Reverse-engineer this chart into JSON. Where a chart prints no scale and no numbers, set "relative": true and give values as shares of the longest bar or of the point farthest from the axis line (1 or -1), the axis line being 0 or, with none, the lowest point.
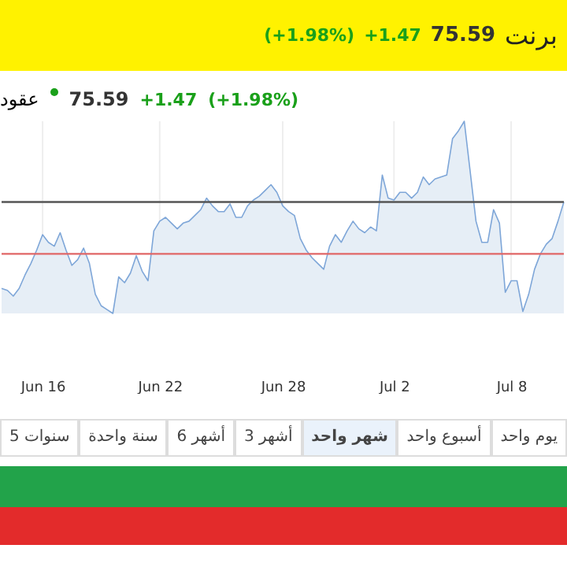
{
  "chart_data": {
    "type": "area",
    "title": "برنت",
    "subtitle": "عقود",
    "annotations": [
      "75.59",
      "+1.47",
      "(+1.98%)",
      "يوم واحد",
      "أسبوع واحد",
      "شهر واحد",
      "3 أشهر",
      "6 أشهر",
      "سنة واحدة",
      "5 سنوات"
    ],
    "relative": true,
    "grid": "x",
    "categories": [
      null,
      null,
      null,
      null,
      null,
      null,
      null,
      "Jun 16",
      null,
      null,
      null,
      null,
      null,
      null,
      null,
      null,
      null,
      null,
      null,
      null,
      null,
      null,
      null,
      null,
      null,
      null,
      null,
      "Jun 22",
      null,
      null,
      null,
      null,
      null,
      null,
      null,
      null,
      null,
      null,
      null,
      null,
      null,
      null,
      null,
      null,
      null,
      null,
      null,
      null,
      "Jun 28",
      null,
      null,
      null,
      null,
      null,
      null,
      null,
      null,
      null,
      null,
      null,
      null,
      null,
      null,
      null,
      null,
      null,
      null,
      "Jul 2",
      null,
      null,
      null,
      null,
      null,
      null,
      null,
      null,
      null,
      null,
      null,
      null,
      null,
      null,
      null,
      null,
      null,
      null,
      null,
      "Jul 8",
      null,
      null,
      null,
      null,
      null,
      null,
      null,
      null,
      null
    ],
    "series": [
      {
        "color": "#7ea6d8",
        "values": [
          0.13,
          0.12,
          0.09,
          0.13,
          0.2,
          0.26,
          0.33,
          0.41,
          0.37,
          0.35,
          0.42,
          0.33,
          0.25,
          0.28,
          0.34,
          0.26,
          0.1,
          0.04,
          0.02,
          0.0,
          0.19,
          0.16,
          0.21,
          0.3,
          0.22,
          0.17,
          0.43,
          0.48,
          0.5,
          0.47,
          0.44,
          0.47,
          0.48,
          0.51,
          0.54,
          0.6,
          0.56,
          0.53,
          0.53,
          0.57,
          0.5,
          0.5,
          0.56,
          0.59,
          0.61,
          0.64,
          0.67,
          0.63,
          0.56,
          0.53,
          0.51,
          0.39,
          0.33,
          0.29,
          0.26,
          0.23,
          0.35,
          0.41,
          0.37,
          0.43,
          0.48,
          0.44,
          0.42,
          0.45,
          0.43,
          0.72,
          0.6,
          0.59,
          0.63,
          0.63,
          0.6,
          0.63,
          0.71,
          0.67,
          0.7,
          0.71,
          0.72,
          0.91,
          0.95,
          1.0,
          0.74,
          0.48,
          0.37,
          0.37,
          0.54,
          0.47,
          0.11,
          0.17,
          0.17,
          0.01,
          0.1,
          0.23,
          0.31,
          0.36,
          0.39,
          0.48,
          0.58
        ]
      }
    ],
    "ref_lines": [
      {
        "axis": "y",
        "value": 0.58,
        "color": "#555555"
      },
      {
        "axis": "y",
        "value": 0.31,
        "color": "#e06666"
      }
    ]
  }
}
